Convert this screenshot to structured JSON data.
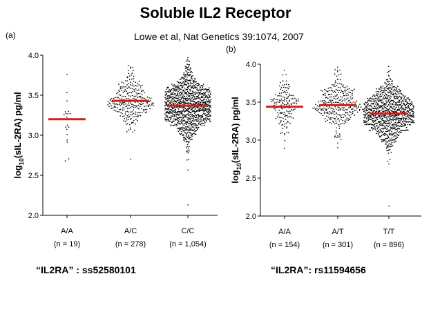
{
  "slide": {
    "title": "Soluble IL2 Receptor",
    "subtitle": "Lowe et al, Nat Genetics 39:1074, 2007"
  },
  "colors": {
    "median_line": "#d81b1b",
    "dots": "#000000",
    "axis": "#000000"
  },
  "chart_data": [
    {
      "type": "scatter",
      "panel_label": "(a)",
      "caption": "“IL2RA” : ss52580101",
      "ylabel_main": "log",
      "ylabel_sub": "10",
      "ylabel_rest": "(sIL-2RA) pg/ml",
      "ylim": [
        2.0,
        4.0
      ],
      "yticks": [
        "2.0",
        "2.5",
        "3.0",
        "3.5",
        "4.0"
      ],
      "groups": [
        {
          "genotype": "A/A",
          "n_label": "(n = 19)",
          "n": 19,
          "median": 3.2,
          "min": 2.68,
          "max": 3.76,
          "sd": 0.24
        },
        {
          "genotype": "A/C",
          "n_label": "(n = 278)",
          "n": 278,
          "median": 3.43,
          "min": 2.7,
          "max": 3.87,
          "sd": 0.16
        },
        {
          "genotype": "C/C",
          "n_label": "(n = 1,054)",
          "n": 1054,
          "median": 3.37,
          "min": 2.13,
          "max": 3.97,
          "sd": 0.2
        }
      ]
    },
    {
      "type": "scatter",
      "panel_label": "(b)",
      "caption": "“IL2RA”: rs11594656",
      "ylabel_main": "log",
      "ylabel_sub": "10",
      "ylabel_rest": "(sIL-2RA) pg/ml",
      "ylim": [
        2.0,
        4.0
      ],
      "yticks": [
        "2.0",
        "2.5",
        "3.0",
        "3.5",
        "4.0"
      ],
      "groups": [
        {
          "genotype": "A/A",
          "n_label": "(n = 154)",
          "n": 154,
          "median": 3.44,
          "min": 2.89,
          "max": 3.92,
          "sd": 0.17
        },
        {
          "genotype": "A/T",
          "n_label": "(n = 301)",
          "n": 301,
          "median": 3.46,
          "min": 2.9,
          "max": 3.96,
          "sd": 0.17
        },
        {
          "genotype": "T/T",
          "n_label": "(n = 896)",
          "n": 896,
          "median": 3.35,
          "min": 2.13,
          "max": 3.97,
          "sd": 0.2
        }
      ]
    }
  ]
}
